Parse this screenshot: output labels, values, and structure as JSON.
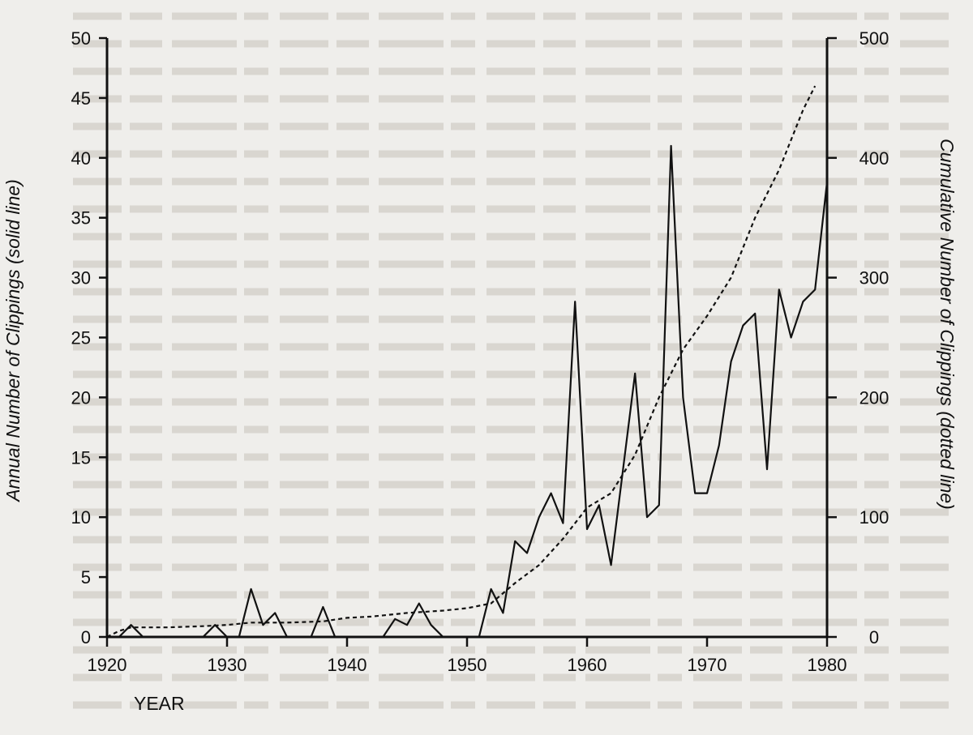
{
  "chart_data": {
    "type": "line",
    "title": "",
    "xlabel": "YEAR",
    "ylabel_left": "Annual Number of Clippings (solid line)",
    "ylabel_right": "Cumulative Number of Clippings (dotted line)",
    "xlim": [
      1920,
      1980
    ],
    "ylim_left": [
      0,
      50
    ],
    "ylim_right": [
      0,
      500
    ],
    "x_ticks": [
      1920,
      1930,
      1940,
      1950,
      1960,
      1970,
      1980
    ],
    "y_ticks_left": [
      0,
      5,
      10,
      15,
      20,
      25,
      30,
      35,
      40,
      45,
      50
    ],
    "y_ticks_right": [
      0,
      100,
      200,
      300,
      400,
      500
    ],
    "grid": false,
    "series": [
      {
        "name": "Annual Number of Clippings",
        "axis": "left",
        "style": "solid",
        "points": [
          [
            1920,
            0
          ],
          [
            1921,
            0
          ],
          [
            1922,
            1
          ],
          [
            1923,
            0
          ],
          [
            1924,
            0
          ],
          [
            1925,
            0
          ],
          [
            1926,
            0
          ],
          [
            1927,
            0
          ],
          [
            1928,
            0
          ],
          [
            1929,
            1
          ],
          [
            1930,
            0
          ],
          [
            1931,
            0
          ],
          [
            1932,
            4
          ],
          [
            1933,
            1
          ],
          [
            1934,
            2
          ],
          [
            1935,
            0
          ],
          [
            1936,
            0
          ],
          [
            1937,
            0
          ],
          [
            1938,
            2.5
          ],
          [
            1939,
            0
          ],
          [
            1940,
            0
          ],
          [
            1941,
            0
          ],
          [
            1942,
            0
          ],
          [
            1943,
            0
          ],
          [
            1944,
            1.5
          ],
          [
            1945,
            1
          ],
          [
            1946,
            2.8
          ],
          [
            1947,
            1
          ],
          [
            1948,
            0
          ],
          [
            1949,
            0
          ],
          [
            1950,
            0
          ],
          [
            1951,
            0
          ],
          [
            1952,
            4
          ],
          [
            1953,
            2
          ],
          [
            1954,
            8
          ],
          [
            1955,
            7
          ],
          [
            1956,
            10
          ],
          [
            1957,
            12
          ],
          [
            1958,
            9.5
          ],
          [
            1959,
            28
          ],
          [
            1960,
            9
          ],
          [
            1961,
            11
          ],
          [
            1962,
            6
          ],
          [
            1963,
            14
          ],
          [
            1964,
            22
          ],
          [
            1965,
            10
          ],
          [
            1966,
            11
          ],
          [
            1967,
            41
          ],
          [
            1968,
            20
          ],
          [
            1969,
            12
          ],
          [
            1970,
            12
          ],
          [
            1971,
            16
          ],
          [
            1972,
            23
          ],
          [
            1973,
            26
          ],
          [
            1974,
            27
          ],
          [
            1975,
            14
          ],
          [
            1976,
            29
          ],
          [
            1977,
            25
          ],
          [
            1978,
            28
          ],
          [
            1979,
            29
          ],
          [
            1980,
            38
          ]
        ]
      },
      {
        "name": "Cumulative Number of Clippings",
        "axis": "right",
        "style": "dotted",
        "points": [
          [
            1920,
            0
          ],
          [
            1921,
            5
          ],
          [
            1922,
            8
          ],
          [
            1925,
            8
          ],
          [
            1928,
            9
          ],
          [
            1930,
            10
          ],
          [
            1932,
            12
          ],
          [
            1935,
            12
          ],
          [
            1938,
            13
          ],
          [
            1940,
            16
          ],
          [
            1942,
            17
          ],
          [
            1945,
            20
          ],
          [
            1948,
            22
          ],
          [
            1950,
            24
          ],
          [
            1952,
            28
          ],
          [
            1954,
            45
          ],
          [
            1956,
            60
          ],
          [
            1958,
            82
          ],
          [
            1960,
            108
          ],
          [
            1962,
            120
          ],
          [
            1964,
            152
          ],
          [
            1966,
            200
          ],
          [
            1968,
            240
          ],
          [
            1970,
            268
          ],
          [
            1972,
            300
          ],
          [
            1974,
            350
          ],
          [
            1976,
            390
          ],
          [
            1978,
            440
          ],
          [
            1979,
            460
          ]
        ]
      }
    ]
  }
}
